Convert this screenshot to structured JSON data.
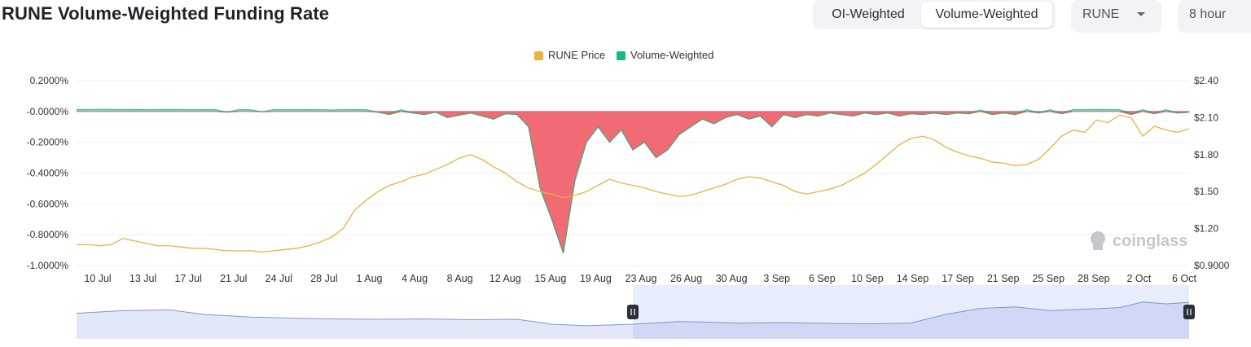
{
  "header": {
    "title": "RUNE Volume-Weighted Funding Rate",
    "toggle": [
      "OI-Weighted",
      "Volume-Weighted"
    ],
    "active_toggle": "Volume-Weighted",
    "coin_select": "RUNE",
    "interval_select": "8 hour"
  },
  "watermark": "coinglass",
  "colors": {
    "price": "#e8b33f",
    "positive": "#18b985",
    "negative": "#f06b73",
    "navigator_fill": "#dfe5f7",
    "navigator_line": "#7f97d6"
  },
  "chart_data": {
    "type": "line",
    "legend": [
      "RUNE Price",
      "Volume-Weighted"
    ],
    "legend_position": "top-center",
    "x_labels": [
      "10 Jul",
      "13 Jul",
      "17 Jul",
      "21 Jul",
      "24 Jul",
      "28 Jul",
      "1 Aug",
      "4 Aug",
      "8 Aug",
      "12 Aug",
      "15 Aug",
      "19 Aug",
      "23 Aug",
      "26 Aug",
      "30 Aug",
      "3 Sep",
      "6 Sep",
      "10 Sep",
      "14 Sep",
      "17 Sep",
      "21 Sep",
      "25 Sep",
      "28 Sep",
      "2 Oct",
      "6 Oct"
    ],
    "y_left_labels": [
      "0.2000%",
      "-0.0000%",
      "-0.2000%",
      "-0.4000%",
      "-0.6000%",
      "-0.8000%",
      "-1.0000%"
    ],
    "y_left_range": [
      -1.0,
      0.2
    ],
    "y_right_labels": [
      "$2.40",
      "$2.10",
      "$1.80",
      "$1.50",
      "$1.20",
      "$0.9000"
    ],
    "y_right_range": [
      0.9,
      2.4
    ],
    "grid": true,
    "series": [
      {
        "name": "RUNE Price",
        "axis": "right",
        "points": [
          [
            0,
            1.07
          ],
          [
            1,
            1.07
          ],
          [
            2,
            1.06
          ],
          [
            3,
            1.07
          ],
          [
            4,
            1.12
          ],
          [
            5,
            1.1
          ],
          [
            6,
            1.08
          ],
          [
            7,
            1.06
          ],
          [
            8,
            1.06
          ],
          [
            9,
            1.05
          ],
          [
            10,
            1.04
          ],
          [
            11,
            1.04
          ],
          [
            12,
            1.03
          ],
          [
            13,
            1.02
          ],
          [
            14,
            1.02
          ],
          [
            15,
            1.02
          ],
          [
            16,
            1.01
          ],
          [
            17,
            1.02
          ],
          [
            18,
            1.03
          ],
          [
            19,
            1.04
          ],
          [
            20,
            1.06
          ],
          [
            21,
            1.09
          ],
          [
            22,
            1.13
          ],
          [
            23,
            1.2
          ],
          [
            24,
            1.35
          ],
          [
            25,
            1.43
          ],
          [
            26,
            1.5
          ],
          [
            27,
            1.55
          ],
          [
            28,
            1.58
          ],
          [
            29,
            1.62
          ],
          [
            30,
            1.64
          ],
          [
            31,
            1.68
          ],
          [
            32,
            1.72
          ],
          [
            33,
            1.77
          ],
          [
            34,
            1.8
          ],
          [
            35,
            1.76
          ],
          [
            36,
            1.7
          ],
          [
            37,
            1.65
          ],
          [
            38,
            1.58
          ],
          [
            39,
            1.53
          ],
          [
            40,
            1.5
          ],
          [
            41,
            1.48
          ],
          [
            42,
            1.45
          ],
          [
            43,
            1.47
          ],
          [
            44,
            1.5
          ],
          [
            45,
            1.55
          ],
          [
            46,
            1.6
          ],
          [
            47,
            1.57
          ],
          [
            48,
            1.55
          ],
          [
            49,
            1.53
          ],
          [
            50,
            1.5
          ],
          [
            51,
            1.48
          ],
          [
            52,
            1.46
          ],
          [
            53,
            1.47
          ],
          [
            54,
            1.5
          ],
          [
            55,
            1.53
          ],
          [
            56,
            1.56
          ],
          [
            57,
            1.6
          ],
          [
            58,
            1.62
          ],
          [
            59,
            1.61
          ],
          [
            60,
            1.58
          ],
          [
            61,
            1.55
          ],
          [
            62,
            1.5
          ],
          [
            63,
            1.48
          ],
          [
            64,
            1.5
          ],
          [
            65,
            1.52
          ],
          [
            66,
            1.55
          ],
          [
            67,
            1.6
          ],
          [
            68,
            1.65
          ],
          [
            69,
            1.72
          ],
          [
            70,
            1.8
          ],
          [
            71,
            1.88
          ],
          [
            72,
            1.93
          ],
          [
            73,
            1.95
          ],
          [
            74,
            1.92
          ],
          [
            75,
            1.86
          ],
          [
            76,
            1.82
          ],
          [
            77,
            1.79
          ],
          [
            78,
            1.77
          ],
          [
            79,
            1.74
          ],
          [
            80,
            1.73
          ],
          [
            81,
            1.71
          ],
          [
            82,
            1.72
          ],
          [
            83,
            1.76
          ],
          [
            84,
            1.85
          ],
          [
            85,
            1.95
          ],
          [
            86,
            2.0
          ],
          [
            87,
            1.98
          ],
          [
            88,
            2.08
          ],
          [
            89,
            2.06
          ],
          [
            90,
            2.12
          ],
          [
            91,
            2.1
          ],
          [
            92,
            1.95
          ],
          [
            93,
            2.03
          ],
          [
            94,
            2.0
          ],
          [
            95,
            1.98
          ],
          [
            96,
            2.01
          ]
        ]
      },
      {
        "name": "Volume-Weighted",
        "axis": "left",
        "points": [
          [
            0,
            0.005
          ],
          [
            1,
            0.004
          ],
          [
            2,
            0.006
          ],
          [
            3,
            0.005
          ],
          [
            4,
            0.004
          ],
          [
            5,
            0.005
          ],
          [
            6,
            0.003
          ],
          [
            7,
            0.004
          ],
          [
            8,
            0.005
          ],
          [
            9,
            0.004
          ],
          [
            10,
            0.003
          ],
          [
            11,
            0.004
          ],
          [
            12,
            0.003
          ],
          [
            13,
            -0.005
          ],
          [
            14,
            0.004
          ],
          [
            15,
            0.003
          ],
          [
            16,
            -0.003
          ],
          [
            17,
            0.004
          ],
          [
            18,
            0.003
          ],
          [
            19,
            0.003
          ],
          [
            20,
            0.004
          ],
          [
            21,
            0.003
          ],
          [
            22,
            0.002
          ],
          [
            23,
            0.003
          ],
          [
            24,
            0.004
          ],
          [
            25,
            0.003
          ],
          [
            26,
            -0.005
          ],
          [
            27,
            -0.02
          ],
          [
            28,
            0.003
          ],
          [
            29,
            -0.01
          ],
          [
            30,
            -0.02
          ],
          [
            31,
            -0.005
          ],
          [
            32,
            -0.04
          ],
          [
            33,
            -0.025
          ],
          [
            34,
            -0.01
          ],
          [
            35,
            -0.03
          ],
          [
            36,
            -0.05
          ],
          [
            37,
            -0.015
          ],
          [
            38,
            -0.02
          ],
          [
            39,
            -0.1
          ],
          [
            40,
            -0.5
          ],
          [
            41,
            -0.7
          ],
          [
            42,
            -0.92
          ],
          [
            43,
            -0.45
          ],
          [
            44,
            -0.2
          ],
          [
            45,
            -0.1
          ],
          [
            46,
            -0.2
          ],
          [
            47,
            -0.12
          ],
          [
            48,
            -0.25
          ],
          [
            49,
            -0.2
          ],
          [
            50,
            -0.3
          ],
          [
            51,
            -0.25
          ],
          [
            52,
            -0.15
          ],
          [
            53,
            -0.1
          ],
          [
            54,
            -0.05
          ],
          [
            55,
            -0.08
          ],
          [
            56,
            -0.04
          ],
          [
            57,
            -0.02
          ],
          [
            58,
            -0.05
          ],
          [
            59,
            -0.03
          ],
          [
            60,
            -0.1
          ],
          [
            61,
            -0.02
          ],
          [
            62,
            -0.04
          ],
          [
            63,
            -0.02
          ],
          [
            64,
            -0.03
          ],
          [
            65,
            -0.01
          ],
          [
            66,
            -0.02
          ],
          [
            67,
            -0.03
          ],
          [
            68,
            -0.01
          ],
          [
            69,
            -0.02
          ],
          [
            70,
            -0.01
          ],
          [
            71,
            -0.03
          ],
          [
            72,
            -0.015
          ],
          [
            73,
            -0.02
          ],
          [
            74,
            -0.01
          ],
          [
            75,
            -0.02
          ],
          [
            76,
            -0.01
          ],
          [
            77,
            -0.015
          ],
          [
            78,
            0.002
          ],
          [
            79,
            -0.02
          ],
          [
            80,
            -0.01
          ],
          [
            81,
            -0.02
          ],
          [
            82,
            0.004
          ],
          [
            83,
            -0.01
          ],
          [
            84,
            0.003
          ],
          [
            85,
            -0.015
          ],
          [
            86,
            0.004
          ],
          [
            87,
            0.003
          ],
          [
            88,
            0.005
          ],
          [
            89,
            0.004
          ],
          [
            90,
            0.003
          ],
          [
            91,
            -0.02
          ],
          [
            92,
            0.004
          ],
          [
            93,
            -0.015
          ],
          [
            94,
            0.003
          ],
          [
            95,
            -0.01
          ],
          [
            96,
            -0.005
          ]
        ]
      }
    ],
    "navigator": {
      "points": [
        [
          0,
          0.55
        ],
        [
          4,
          0.62
        ],
        [
          8,
          0.64
        ],
        [
          11,
          0.52
        ],
        [
          15,
          0.45
        ],
        [
          19,
          0.42
        ],
        [
          22,
          0.4
        ],
        [
          26,
          0.39
        ],
        [
          30,
          0.4
        ],
        [
          34,
          0.38
        ],
        [
          38,
          0.39
        ],
        [
          41,
          0.26
        ],
        [
          44,
          0.22
        ],
        [
          48,
          0.26
        ],
        [
          52,
          0.33
        ],
        [
          55,
          0.31
        ],
        [
          57,
          0.29
        ],
        [
          61,
          0.3
        ],
        [
          65,
          0.28
        ],
        [
          69,
          0.27
        ],
        [
          72,
          0.29
        ],
        [
          75,
          0.52
        ],
        [
          78,
          0.68
        ],
        [
          81,
          0.72
        ],
        [
          84,
          0.62
        ],
        [
          87,
          0.66
        ],
        [
          90,
          0.7
        ],
        [
          92,
          0.85
        ],
        [
          94,
          0.8
        ],
        [
          96,
          0.84
        ]
      ],
      "selected_range": [
        0.5,
        1.0
      ]
    }
  }
}
